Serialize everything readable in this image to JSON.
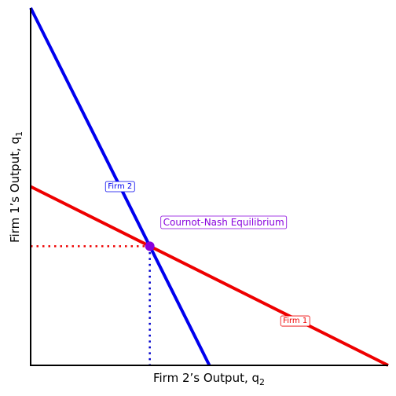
{
  "chart_data": {
    "type": "line",
    "title": "",
    "xlabel": {
      "text": "Firm 2’s Output, q",
      "subscript": "2"
    },
    "ylabel": {
      "text": "Firm 1’s Output, q",
      "subscript": "1"
    },
    "xlim": [
      0,
      10
    ],
    "ylim": [
      0,
      10
    ],
    "grid": false,
    "series": [
      {
        "name": "Firm 1",
        "color": "#ee0000",
        "x": [
          0,
          10
        ],
        "y": [
          5,
          0
        ],
        "label_at": [
          7.4,
          1.24
        ]
      },
      {
        "name": "Firm 2",
        "color": "#0000ee",
        "x": [
          0,
          5
        ],
        "y": [
          10,
          0
        ],
        "label_at": [
          2.5,
          5.0
        ]
      }
    ],
    "equilibrium": {
      "label": "Cournot-Nash Equilibrium",
      "x": 3.333,
      "y": 3.333,
      "color": "#8800dd",
      "label_at": [
        5.4,
        4.0
      ],
      "guide_x_color": "#0000cc",
      "guide_y_color": "#ee0000"
    }
  }
}
